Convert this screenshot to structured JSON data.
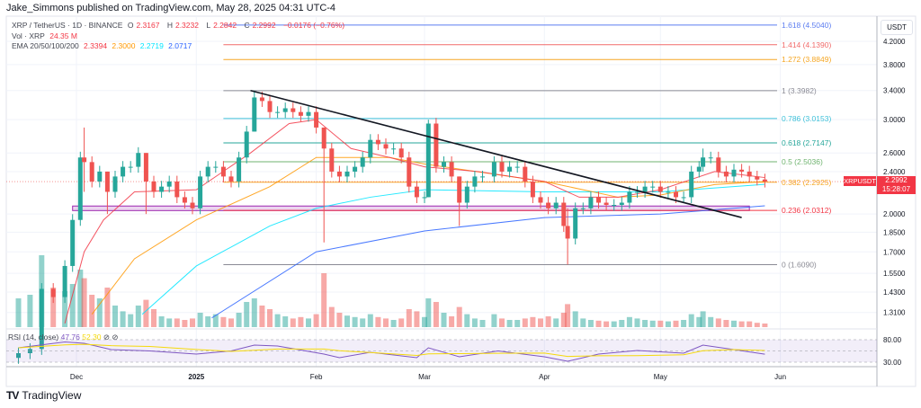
{
  "header": {
    "published": "Jake_Simmons published on TradingView.com, May 28, 2025 04:31 UTC-4"
  },
  "legend": {
    "symbol": "XRP / TetherUS · 1D · BINANCE",
    "o_label": "O",
    "o": "2.3167",
    "h_label": "H",
    "h": "2.3232",
    "l_label": "L",
    "l": "2.2842",
    "c_label": "C",
    "c": "2.2992",
    "change": "−0.0176 (−0.76%)",
    "vol_label": "Vol · XRP",
    "vol": "24.35 M",
    "ema_label": "EMA 20/50/100/200",
    "ema20": "2.3394",
    "ema50": "2.3000",
    "ema100": "2.2719",
    "ema200": "2.0717"
  },
  "rsi": {
    "label": "RSI (14, close)",
    "value": "47.76",
    "ma": "52.30",
    "levels": [
      80,
      30
    ],
    "points": [
      [
        "2024-11-16",
        62
      ],
      [
        "2024-11-28",
        75
      ],
      [
        "2024-12-03",
        72
      ],
      [
        "2024-12-10",
        58
      ],
      [
        "2024-12-20",
        55
      ],
      [
        "2025-01-01",
        48
      ],
      [
        "2025-01-10",
        55
      ],
      [
        "2025-01-16",
        68
      ],
      [
        "2025-01-22",
        66
      ],
      [
        "2025-02-03",
        48
      ],
      [
        "2025-02-07",
        40
      ],
      [
        "2025-02-15",
        52
      ],
      [
        "2025-02-27",
        40
      ],
      [
        "2025-03-02",
        62
      ],
      [
        "2025-03-10",
        42
      ],
      [
        "2025-03-20",
        55
      ],
      [
        "2025-04-01",
        42
      ],
      [
        "2025-04-07",
        32
      ],
      [
        "2025-04-15",
        48
      ],
      [
        "2025-04-25",
        56
      ],
      [
        "2025-05-07",
        50
      ],
      [
        "2025-05-12",
        68
      ],
      [
        "2025-05-20",
        58
      ],
      [
        "2025-05-28",
        47.76
      ]
    ]
  },
  "price_axis": {
    "unit": "USDT",
    "ticks": [
      "4.2000",
      "3.8000",
      "3.4000",
      "3.0000",
      "2.6000",
      "2.4000",
      "2.0000",
      "1.8500",
      "1.7000",
      "1.5500",
      "1.4300",
      "1.3100"
    ],
    "scale": "log"
  },
  "rsi_axis": {
    "ticks": [
      "80.00",
      "30.00"
    ]
  },
  "time_axis": {
    "ticks": [
      [
        "2024-12-01",
        "Dec"
      ],
      [
        "2025-01-01",
        "2025"
      ],
      [
        "2025-02-01",
        "Feb"
      ],
      [
        "2025-03-01",
        "Mar"
      ],
      [
        "2025-04-01",
        "Apr"
      ],
      [
        "2025-05-01",
        "May"
      ],
      [
        "2025-06-01",
        "Jun"
      ]
    ]
  },
  "last_price": {
    "symbol": "XRPUSDT",
    "price": "2.2992",
    "countdown": "15:28:07",
    "color": "#f23645"
  },
  "colors": {
    "up": "#26a69a",
    "down": "#ef5350",
    "ema20": "#f23645",
    "ema50": "#ff9800",
    "ema100": "#00e5ff",
    "ema200": "#2962ff",
    "zone": "#9c27b0"
  },
  "fib": [
    {
      "level": "1.618 (4.5040)",
      "price": 4.504,
      "color": "#5b7cf0"
    },
    {
      "level": "1.414 (4.1390)",
      "price": 4.139,
      "color": "#f06a6a"
    },
    {
      "level": "1.272 (3.8849)",
      "price": 3.8849,
      "color": "#f5a623"
    },
    {
      "level": "1 (3.3982)",
      "price": 3.3982,
      "color": "#8a8a94"
    },
    {
      "level": "0.786 (3.0153)",
      "price": 3.0153,
      "color": "#3fc1d9"
    },
    {
      "level": "0.618 (2.7147)",
      "price": 2.7147,
      "color": "#26a69a"
    },
    {
      "level": "0.5 (2.5036)",
      "price": 2.5036,
      "color": "#6fb36f"
    },
    {
      "level": "0.382 (2.2925)",
      "price": 2.2925,
      "color": "#f5a623"
    },
    {
      "level": "0.236 (2.0312)",
      "price": 2.0312,
      "color": "#f23645"
    },
    {
      "level": "0 (1.6090)",
      "price": 1.609,
      "color": "#8a8a94"
    }
  ],
  "fib_start": "2025-01-08",
  "zone": {
    "from": "2024-11-30",
    "to": "2025-05-24",
    "low": 2.03,
    "high": 2.07
  },
  "trendline": {
    "from": [
      "2025-01-15",
      3.4
    ],
    "to": [
      "2025-05-22",
      1.97
    ]
  },
  "candles": [
    [
      "2024-11-16",
      1.1,
      40
    ],
    [
      "2024-11-19",
      1.12,
      45
    ],
    [
      "2024-11-22",
      1.45,
      100
    ],
    [
      "2024-11-25",
      1.4,
      55
    ],
    [
      "2024-11-28",
      1.6,
      50
    ],
    [
      "2024-11-30",
      1.95,
      60
    ],
    [
      "2024-12-02",
      2.55,
      80
    ],
    [
      "2024-12-03",
      2.5,
      68,
      2.9,
      2.2
    ],
    [
      "2024-12-05",
      2.3,
      45
    ],
    [
      "2024-12-07",
      2.4,
      40
    ],
    [
      "2024-12-09",
      2.2,
      55,
      2.4,
      2.0
    ],
    [
      "2024-12-11",
      2.35,
      30
    ],
    [
      "2024-12-13",
      2.45,
      22
    ],
    [
      "2024-12-15",
      2.45,
      18
    ],
    [
      "2024-12-17",
      2.6,
      30
    ],
    [
      "2024-12-19",
      2.3,
      38,
      2.6,
      2.0
    ],
    [
      "2024-12-21",
      2.2,
      25
    ],
    [
      "2024-12-23",
      2.25,
      15
    ],
    [
      "2024-12-25",
      2.3,
      12
    ],
    [
      "2024-12-27",
      2.15,
      12
    ],
    [
      "2024-12-29",
      2.1,
      10
    ],
    [
      "2024-12-31",
      2.05,
      12
    ],
    [
      "2025-01-02",
      2.35,
      20
    ],
    [
      "2025-01-04",
      2.45,
      15
    ],
    [
      "2025-01-06",
      2.45,
      18
    ],
    [
      "2025-01-08",
      2.35,
      14
    ],
    [
      "2025-01-10",
      2.3,
      12
    ],
    [
      "2025-01-12",
      2.55,
      20
    ],
    [
      "2025-01-14",
      2.85,
      35
    ],
    [
      "2025-01-16",
      3.3,
      40,
      3.4,
      2.85
    ],
    [
      "2025-01-18",
      3.25,
      30
    ],
    [
      "2025-01-20",
      3.1,
      25
    ],
    [
      "2025-01-22",
      3.1,
      18
    ],
    [
      "2025-01-24",
      3.15,
      15
    ],
    [
      "2025-01-26",
      3.1,
      12
    ],
    [
      "2025-01-28",
      3.05,
      14
    ],
    [
      "2025-01-30",
      3.1,
      12
    ],
    [
      "2025-02-01",
      2.9,
      18
    ],
    [
      "2025-02-03",
      2.65,
      75,
      2.9,
      1.77
    ],
    [
      "2025-02-05",
      2.4,
      28
    ],
    [
      "2025-02-07",
      2.35,
      20
    ],
    [
      "2025-02-09",
      2.4,
      16
    ],
    [
      "2025-02-11",
      2.45,
      14
    ],
    [
      "2025-02-13",
      2.55,
      12
    ],
    [
      "2025-02-15",
      2.75,
      18
    ],
    [
      "2025-02-17",
      2.7,
      14
    ],
    [
      "2025-02-19",
      2.65,
      12
    ],
    [
      "2025-02-21",
      2.65,
      10
    ],
    [
      "2025-02-23",
      2.55,
      12
    ],
    [
      "2025-02-25",
      2.25,
      25
    ],
    [
      "2025-02-27",
      2.15,
      22
    ],
    [
      "2025-03-01",
      2.15,
      14
    ],
    [
      "2025-03-02",
      2.95,
      40,
      3.0,
      2.15
    ],
    [
      "2025-03-04",
      2.45,
      35
    ],
    [
      "2025-03-06",
      2.5,
      20
    ],
    [
      "2025-03-08",
      2.35,
      15
    ],
    [
      "2025-03-10",
      2.1,
      28,
      2.35,
      1.9
    ],
    [
      "2025-03-12",
      2.25,
      18
    ],
    [
      "2025-03-14",
      2.35,
      12
    ],
    [
      "2025-03-16",
      2.35,
      10
    ],
    [
      "2025-03-19",
      2.5,
      18
    ],
    [
      "2025-03-21",
      2.4,
      12
    ],
    [
      "2025-03-23",
      2.45,
      10
    ],
    [
      "2025-03-25",
      2.45,
      10
    ],
    [
      "2025-03-27",
      2.3,
      12
    ],
    [
      "2025-03-29",
      2.15,
      14
    ],
    [
      "2025-03-31",
      2.1,
      12
    ],
    [
      "2025-04-02",
      2.05,
      15
    ],
    [
      "2025-04-04",
      2.1,
      12
    ],
    [
      "2025-04-06",
      1.9,
      20
    ],
    [
      "2025-04-07",
      1.8,
      32,
      2.05,
      1.61
    ],
    [
      "2025-04-09",
      2.05,
      22
    ],
    [
      "2025-04-11",
      2.05,
      12
    ],
    [
      "2025-04-13",
      2.15,
      10
    ],
    [
      "2025-04-15",
      2.1,
      9
    ],
    [
      "2025-04-17",
      2.08,
      8
    ],
    [
      "2025-04-19",
      2.08,
      8
    ],
    [
      "2025-04-21",
      2.1,
      10
    ],
    [
      "2025-04-23",
      2.2,
      14
    ],
    [
      "2025-04-25",
      2.2,
      12
    ],
    [
      "2025-04-27",
      2.25,
      10
    ],
    [
      "2025-04-29",
      2.25,
      9
    ],
    [
      "2025-05-01",
      2.2,
      9
    ],
    [
      "2025-05-03",
      2.2,
      8
    ],
    [
      "2025-05-05",
      2.15,
      9
    ],
    [
      "2025-05-07",
      2.15,
      10
    ],
    [
      "2025-05-09",
      2.4,
      18
    ],
    [
      "2025-05-11",
      2.45,
      14
    ],
    [
      "2025-05-12",
      2.55,
      22,
      2.65,
      2.4
    ],
    [
      "2025-05-14",
      2.55,
      14
    ],
    [
      "2025-05-16",
      2.4,
      12
    ],
    [
      "2025-05-18",
      2.35,
      10
    ],
    [
      "2025-05-20",
      2.42,
      9
    ],
    [
      "2025-05-22",
      2.4,
      8
    ],
    [
      "2025-05-24",
      2.35,
      8
    ],
    [
      "2025-05-26",
      2.32,
      6
    ],
    [
      "2025-05-28",
      2.2992,
      5
    ]
  ],
  "ema": {
    "ema20": [
      [
        "2024-11-28",
        1.25
      ],
      [
        "2024-12-03",
        1.7
      ],
      [
        "2024-12-08",
        1.95
      ],
      [
        "2024-12-16",
        2.2
      ],
      [
        "2025-01-01",
        2.22
      ],
      [
        "2025-01-15",
        2.6
      ],
      [
        "2025-01-25",
        2.95
      ],
      [
        "2025-02-01",
        3.0
      ],
      [
        "2025-02-10",
        2.65
      ],
      [
        "2025-02-20",
        2.55
      ],
      [
        "2025-03-01",
        2.45
      ],
      [
        "2025-03-15",
        2.4
      ],
      [
        "2025-04-01",
        2.3
      ],
      [
        "2025-04-10",
        2.15
      ],
      [
        "2025-04-20",
        2.15
      ],
      [
        "2025-05-01",
        2.22
      ],
      [
        "2025-05-15",
        2.4
      ],
      [
        "2025-05-28",
        2.3394
      ]
    ],
    "ema50": [
      [
        "2024-12-05",
        1.3
      ],
      [
        "2024-12-16",
        1.65
      ],
      [
        "2025-01-01",
        1.95
      ],
      [
        "2025-01-20",
        2.25
      ],
      [
        "2025-02-01",
        2.55
      ],
      [
        "2025-02-20",
        2.55
      ],
      [
        "2025-03-01",
        2.48
      ],
      [
        "2025-04-01",
        2.3
      ],
      [
        "2025-04-20",
        2.15
      ],
      [
        "2025-05-01",
        2.17
      ],
      [
        "2025-05-15",
        2.27
      ],
      [
        "2025-05-28",
        2.3
      ]
    ],
    "ema100": [
      [
        "2024-12-18",
        1.3
      ],
      [
        "2025-01-01",
        1.6
      ],
      [
        "2025-01-20",
        1.9
      ],
      [
        "2025-02-01",
        2.05
      ],
      [
        "2025-02-15",
        2.15
      ],
      [
        "2025-03-01",
        2.22
      ],
      [
        "2025-04-01",
        2.2
      ],
      [
        "2025-05-01",
        2.2
      ],
      [
        "2025-05-28",
        2.2719
      ]
    ],
    "ema200": [
      [
        "2025-01-05",
        1.28
      ],
      [
        "2025-02-01",
        1.7
      ],
      [
        "2025-03-01",
        1.86
      ],
      [
        "2025-04-01",
        1.97
      ],
      [
        "2025-05-01",
        2.0
      ],
      [
        "2025-05-28",
        2.0717
      ]
    ]
  }
}
